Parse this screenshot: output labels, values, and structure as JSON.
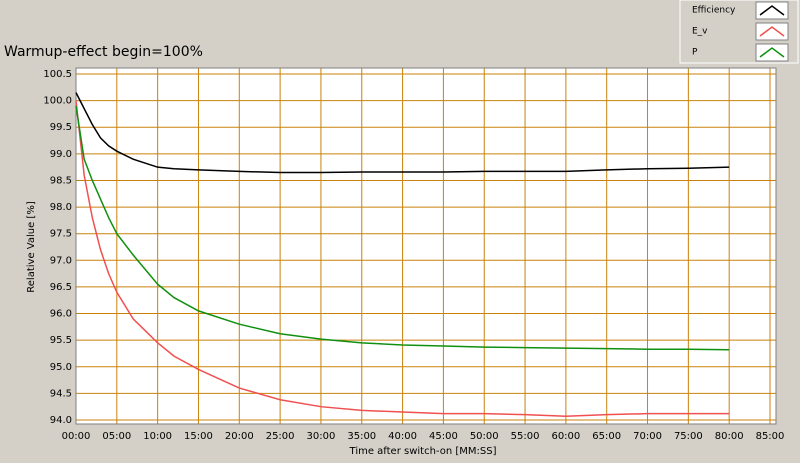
{
  "chart_data": {
    "type": "line",
    "title": "Warmup-effect begin=100%",
    "x_label": "Time after switch-on [MM:SS]",
    "y_label": "Relative Value [%]",
    "x": [
      0,
      1,
      2,
      3,
      4,
      5,
      7,
      10,
      12,
      15,
      20,
      25,
      30,
      35,
      40,
      45,
      50,
      55,
      60,
      65,
      70,
      75,
      80
    ],
    "series": [
      {
        "name": "Efficiency",
        "color": "#000000",
        "values": [
          100.15,
          99.85,
          99.55,
          99.3,
          99.15,
          99.05,
          98.9,
          98.75,
          98.72,
          98.7,
          98.67,
          98.65,
          98.65,
          98.66,
          98.66,
          98.66,
          98.67,
          98.67,
          98.67,
          98.7,
          98.72,
          98.73,
          98.75
        ]
      },
      {
        "name": "E_v",
        "color": "#f05050",
        "values": [
          100.0,
          98.6,
          97.8,
          97.2,
          96.75,
          96.4,
          95.9,
          95.45,
          95.2,
          94.95,
          94.6,
          94.38,
          94.25,
          94.18,
          94.15,
          94.12,
          94.12,
          94.1,
          94.07,
          94.1,
          94.12,
          94.12,
          94.12
        ]
      },
      {
        "name": "P",
        "color": "#109010",
        "values": [
          99.9,
          98.9,
          98.5,
          98.15,
          97.8,
          97.5,
          97.1,
          96.55,
          96.3,
          96.05,
          95.8,
          95.62,
          95.52,
          95.45,
          95.41,
          95.39,
          95.37,
          95.36,
          95.35,
          95.34,
          95.33,
          95.33,
          95.32
        ]
      }
    ],
    "xlim": [
      0,
      85
    ],
    "xticks": [
      {
        "value": 0,
        "label": "00:00"
      },
      {
        "value": 5,
        "label": "05:00"
      },
      {
        "value": 10,
        "label": "10:00"
      },
      {
        "value": 15,
        "label": "15:00"
      },
      {
        "value": 20,
        "label": "20:00"
      },
      {
        "value": 25,
        "label": "25:00"
      },
      {
        "value": 30,
        "label": "30:00"
      },
      {
        "value": 35,
        "label": "35:00"
      },
      {
        "value": 40,
        "label": "40:00"
      },
      {
        "value": 45,
        "label": "45:00"
      },
      {
        "value": 50,
        "label": "50:00"
      },
      {
        "value": 55,
        "label": "55:00"
      },
      {
        "value": 60,
        "label": "60:00"
      },
      {
        "value": 65,
        "label": "65:00"
      },
      {
        "value": 70,
        "label": "70:00"
      },
      {
        "value": 75,
        "label": "75:00"
      },
      {
        "value": 80,
        "label": "80:00"
      },
      {
        "value": 85,
        "label": "85:00"
      }
    ],
    "ylim": [
      94,
      100.5
    ],
    "yticks": [
      {
        "value": 94,
        "label": "94.0"
      },
      94.5,
      {
        "value": 95,
        "label": "95.0"
      },
      95.5,
      {
        "value": 96,
        "label": "96.0"
      },
      96.5,
      {
        "value": 97,
        "label": "97.0"
      },
      97.5,
      {
        "value": 98,
        "label": "98.0"
      },
      98.5,
      {
        "value": 99,
        "label": "99.0"
      },
      99.5,
      {
        "value": 100,
        "label": "100.0"
      },
      100.5
    ],
    "grid": true,
    "grid_color": "#c8820a",
    "legend": "top-right"
  }
}
